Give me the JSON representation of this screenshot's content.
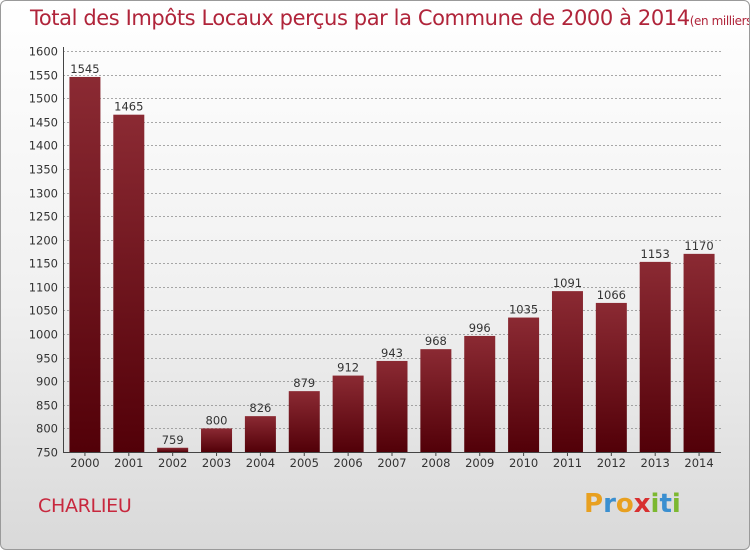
{
  "header": {
    "title": "Total des Impôts Locaux perçus par la Commune de 2000 à 2014",
    "unit": "(en milliers d'€)"
  },
  "commune": "CHARLIEU",
  "logo": {
    "text": "Proxiti",
    "letters": [
      {
        "ch": "P",
        "color": "#e8a020"
      },
      {
        "ch": "r",
        "color": "#3a8fd0"
      },
      {
        "ch": "o",
        "color": "#e8a020"
      },
      {
        "ch": "x",
        "color": "#d83030"
      },
      {
        "ch": "i",
        "color": "#7cb830"
      },
      {
        "ch": "t",
        "color": "#3a8fd0"
      },
      {
        "ch": "i",
        "color": "#7cb830"
      }
    ]
  },
  "colors": {
    "bar_top": "#8b2a33",
    "bar_bottom": "#520008",
    "grid": "#8c8c8c"
  },
  "chart_data": {
    "type": "bar",
    "title": "Total des Impôts Locaux perçus par la Commune de 2000 à 2014",
    "xlabel": "",
    "ylabel": "",
    "categories": [
      "2000",
      "2001",
      "2002",
      "2003",
      "2004",
      "2005",
      "2006",
      "2007",
      "2008",
      "2009",
      "2010",
      "2011",
      "2012",
      "2013",
      "2014"
    ],
    "values": [
      1545,
      1465,
      759,
      800,
      826,
      879,
      912,
      943,
      968,
      996,
      1035,
      1091,
      1066,
      1153,
      1170
    ],
    "ylim": [
      750,
      1600
    ],
    "yticks": [
      750,
      800,
      850,
      900,
      950,
      1000,
      1050,
      1100,
      1150,
      1200,
      1250,
      1300,
      1350,
      1400,
      1450,
      1500,
      1550,
      1600
    ],
    "grid": "horizontal dashed",
    "data_labels": true
  }
}
